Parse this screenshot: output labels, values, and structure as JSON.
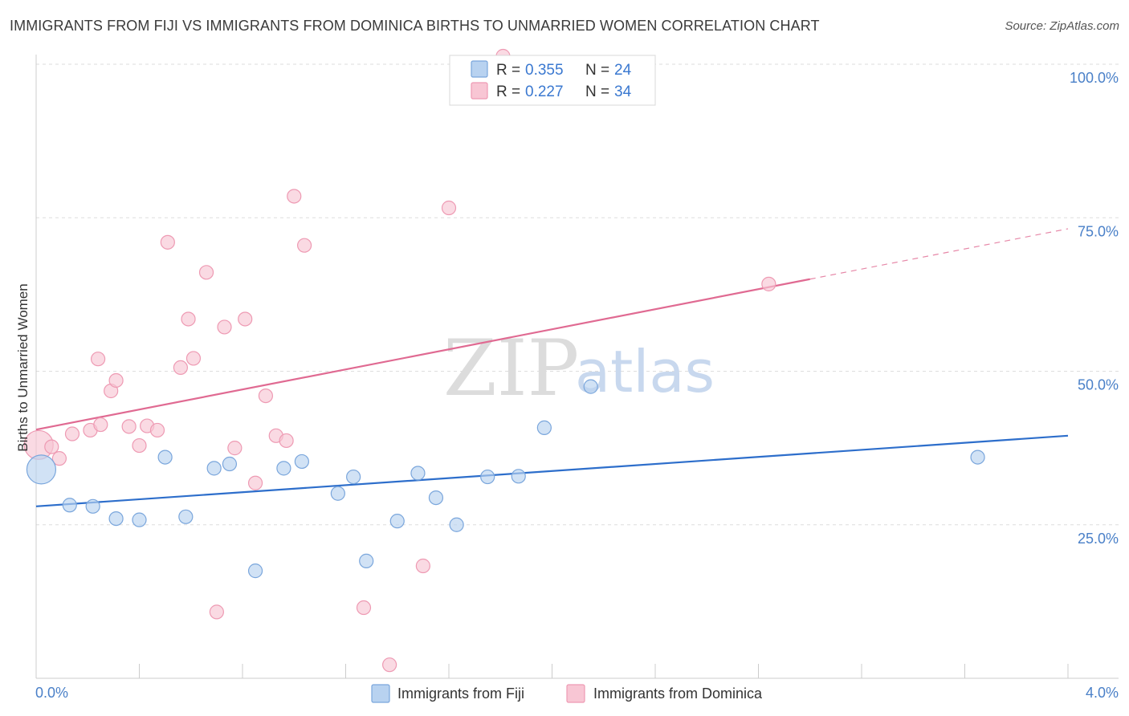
{
  "chart_data": {
    "type": "scatter",
    "title": "IMMIGRANTS FROM FIJI VS IMMIGRANTS FROM DOMINICA BIRTHS TO UNMARRIED WOMEN CORRELATION CHART",
    "source": "Source: ZipAtlas.com",
    "xlabel": "",
    "ylabel": "Births to Unmarried Women",
    "xlim": [
      0.0,
      4.0
    ],
    "ylim": [
      0.0,
      100.0
    ],
    "x_tick_labels": [
      "0.0%",
      "4.0%"
    ],
    "y_ticks": [
      25,
      50,
      75,
      100
    ],
    "y_tick_labels": [
      "25.0%",
      "50.0%",
      "75.0%",
      "100.0%"
    ],
    "watermark": {
      "zip": "ZIP",
      "atlas": "atlas"
    },
    "legend": {
      "r_label": "R =",
      "n_label": "N =",
      "entries": [
        {
          "r": "0.355",
          "n": "24"
        },
        {
          "r": "0.227",
          "n": "34"
        }
      ]
    },
    "colors": {
      "fiji_fill": "#b8d2f0",
      "fiji_stroke": "#7aa6dc",
      "fiji_line": "#2d6ecb",
      "dominica_fill": "#f8c6d4",
      "dominica_stroke": "#ee9ab3",
      "dominica_line": "#e06a92",
      "grid": "#dddddd",
      "axis": "#cccccc"
    },
    "series": [
      {
        "name": "Immigrants from Fiji",
        "trend": {
          "x": [
            0.0,
            4.0
          ],
          "y": [
            28.0,
            39.5
          ]
        },
        "points": [
          {
            "x": 0.02,
            "y": 34.0,
            "big": true
          },
          {
            "x": 0.13,
            "y": 28.2
          },
          {
            "x": 0.22,
            "y": 28.0
          },
          {
            "x": 0.31,
            "y": 26.0
          },
          {
            "x": 0.4,
            "y": 25.8
          },
          {
            "x": 0.5,
            "y": 36.0
          },
          {
            "x": 0.58,
            "y": 26.3
          },
          {
            "x": 0.69,
            "y": 34.2
          },
          {
            "x": 0.75,
            "y": 34.9
          },
          {
            "x": 0.85,
            "y": 17.5
          },
          {
            "x": 0.96,
            "y": 34.2
          },
          {
            "x": 1.03,
            "y": 35.3
          },
          {
            "x": 1.17,
            "y": 30.1
          },
          {
            "x": 1.23,
            "y": 32.8
          },
          {
            "x": 1.28,
            "y": 19.1
          },
          {
            "x": 1.4,
            "y": 25.6
          },
          {
            "x": 1.48,
            "y": 33.4
          },
          {
            "x": 1.55,
            "y": 29.4
          },
          {
            "x": 1.63,
            "y": 25.0
          },
          {
            "x": 1.75,
            "y": 32.8
          },
          {
            "x": 1.87,
            "y": 32.9
          },
          {
            "x": 1.97,
            "y": 40.8
          },
          {
            "x": 2.15,
            "y": 47.5
          },
          {
            "x": 3.65,
            "y": 36.0
          }
        ]
      },
      {
        "name": "Immigrants from Dominica",
        "trend": {
          "x": [
            0.0,
            3.0
          ],
          "y": [
            40.5,
            65.0
          ]
        },
        "trend_ext": {
          "x": [
            3.0,
            4.0
          ],
          "y": [
            65.0,
            73.2
          ]
        },
        "points": [
          {
            "x": 0.01,
            "y": 38.0,
            "big": true
          },
          {
            "x": 0.06,
            "y": 37.7
          },
          {
            "x": 0.09,
            "y": 35.8
          },
          {
            "x": 0.14,
            "y": 39.8
          },
          {
            "x": 0.21,
            "y": 40.4
          },
          {
            "x": 0.25,
            "y": 41.3
          },
          {
            "x": 0.24,
            "y": 52.0
          },
          {
            "x": 0.29,
            "y": 46.8
          },
          {
            "x": 0.31,
            "y": 48.5
          },
          {
            "x": 0.36,
            "y": 41.0
          },
          {
            "x": 0.4,
            "y": 37.9
          },
          {
            "x": 0.43,
            "y": 41.1
          },
          {
            "x": 0.47,
            "y": 40.4
          },
          {
            "x": 0.51,
            "y": 71.0
          },
          {
            "x": 0.56,
            "y": 50.6
          },
          {
            "x": 0.59,
            "y": 58.5
          },
          {
            "x": 0.61,
            "y": 52.1
          },
          {
            "x": 0.66,
            "y": 66.1
          },
          {
            "x": 0.7,
            "y": 10.8
          },
          {
            "x": 0.73,
            "y": 57.2
          },
          {
            "x": 0.77,
            "y": 37.5
          },
          {
            "x": 0.81,
            "y": 58.5
          },
          {
            "x": 0.85,
            "y": 31.8
          },
          {
            "x": 0.89,
            "y": 46.0
          },
          {
            "x": 0.93,
            "y": 39.5
          },
          {
            "x": 0.97,
            "y": 38.7
          },
          {
            "x": 1.0,
            "y": 78.5
          },
          {
            "x": 1.04,
            "y": 70.5
          },
          {
            "x": 1.27,
            "y": 11.5
          },
          {
            "x": 1.37,
            "y": 2.2
          },
          {
            "x": 1.5,
            "y": 18.3
          },
          {
            "x": 1.6,
            "y": 76.6
          },
          {
            "x": 1.81,
            "y": 104.0
          },
          {
            "x": 2.84,
            "y": 64.2
          }
        ]
      }
    ]
  }
}
